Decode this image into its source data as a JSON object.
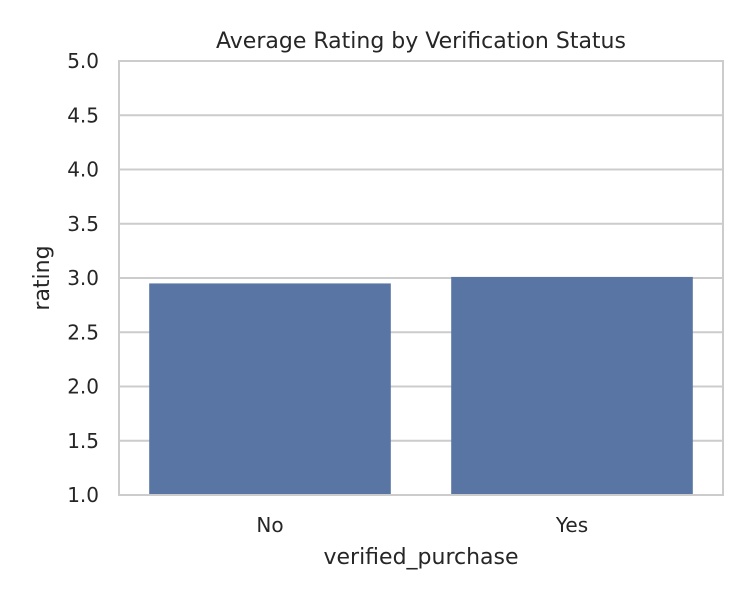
{
  "chart_data": {
    "type": "bar",
    "title": "Average Rating by Verification Status",
    "xlabel": "verified_purchase",
    "ylabel": "rating",
    "categories": [
      "No",
      "Yes"
    ],
    "values": [
      2.95,
      3.01
    ],
    "ylim": [
      1.0,
      5.0
    ],
    "yticks": [
      "1.0",
      "1.5",
      "2.0",
      "2.5",
      "3.0",
      "3.5",
      "4.0",
      "4.5",
      "5.0"
    ],
    "grid": true,
    "legend": "none",
    "colors": {
      "bar": "#5875a4",
      "grid": "#cccccc",
      "frame": "#cccccc",
      "background": "#ffffff"
    }
  }
}
